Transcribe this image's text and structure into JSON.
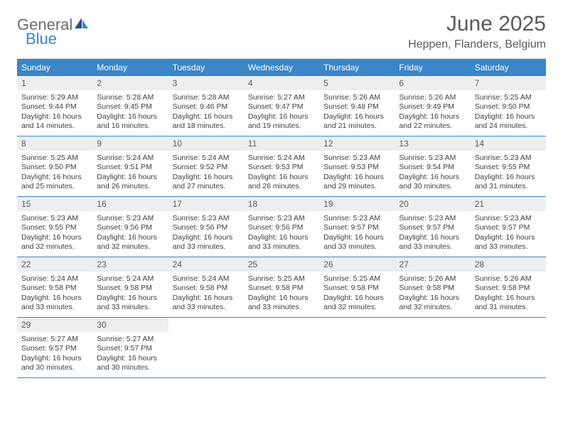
{
  "logo": {
    "text1": "General",
    "text2": "Blue"
  },
  "title": "June 2025",
  "location": "Heppen, Flanders, Belgium",
  "colors": {
    "header_bg": "#3a86c8",
    "header_text": "#ffffff",
    "daynum_bg": "#eceef0",
    "text": "#5a5a5a",
    "body_text": "#404040",
    "border": "#3a86c8"
  },
  "day_names": [
    "Sunday",
    "Monday",
    "Tuesday",
    "Wednesday",
    "Thursday",
    "Friday",
    "Saturday"
  ],
  "weeks": [
    [
      {
        "n": "1",
        "sr": "5:29 AM",
        "ss": "9:44 PM",
        "dh": "16",
        "dm": "14"
      },
      {
        "n": "2",
        "sr": "5:28 AM",
        "ss": "9:45 PM",
        "dh": "16",
        "dm": "16"
      },
      {
        "n": "3",
        "sr": "5:28 AM",
        "ss": "9:46 PM",
        "dh": "16",
        "dm": "18"
      },
      {
        "n": "4",
        "sr": "5:27 AM",
        "ss": "9:47 PM",
        "dh": "16",
        "dm": "19"
      },
      {
        "n": "5",
        "sr": "5:26 AM",
        "ss": "9:48 PM",
        "dh": "16",
        "dm": "21"
      },
      {
        "n": "6",
        "sr": "5:26 AM",
        "ss": "9:49 PM",
        "dh": "16",
        "dm": "22"
      },
      {
        "n": "7",
        "sr": "5:25 AM",
        "ss": "9:50 PM",
        "dh": "16",
        "dm": "24"
      }
    ],
    [
      {
        "n": "8",
        "sr": "5:25 AM",
        "ss": "9:50 PM",
        "dh": "16",
        "dm": "25"
      },
      {
        "n": "9",
        "sr": "5:24 AM",
        "ss": "9:51 PM",
        "dh": "16",
        "dm": "26"
      },
      {
        "n": "10",
        "sr": "5:24 AM",
        "ss": "9:52 PM",
        "dh": "16",
        "dm": "27"
      },
      {
        "n": "11",
        "sr": "5:24 AM",
        "ss": "9:53 PM",
        "dh": "16",
        "dm": "28"
      },
      {
        "n": "12",
        "sr": "5:23 AM",
        "ss": "9:53 PM",
        "dh": "16",
        "dm": "29"
      },
      {
        "n": "13",
        "sr": "5:23 AM",
        "ss": "9:54 PM",
        "dh": "16",
        "dm": "30"
      },
      {
        "n": "14",
        "sr": "5:23 AM",
        "ss": "9:55 PM",
        "dh": "16",
        "dm": "31"
      }
    ],
    [
      {
        "n": "15",
        "sr": "5:23 AM",
        "ss": "9:55 PM",
        "dh": "16",
        "dm": "32"
      },
      {
        "n": "16",
        "sr": "5:23 AM",
        "ss": "9:56 PM",
        "dh": "16",
        "dm": "32"
      },
      {
        "n": "17",
        "sr": "5:23 AM",
        "ss": "9:56 PM",
        "dh": "16",
        "dm": "33"
      },
      {
        "n": "18",
        "sr": "5:23 AM",
        "ss": "9:56 PM",
        "dh": "16",
        "dm": "33"
      },
      {
        "n": "19",
        "sr": "5:23 AM",
        "ss": "9:57 PM",
        "dh": "16",
        "dm": "33"
      },
      {
        "n": "20",
        "sr": "5:23 AM",
        "ss": "9:57 PM",
        "dh": "16",
        "dm": "33"
      },
      {
        "n": "21",
        "sr": "5:23 AM",
        "ss": "9:57 PM",
        "dh": "16",
        "dm": "33"
      }
    ],
    [
      {
        "n": "22",
        "sr": "5:24 AM",
        "ss": "9:58 PM",
        "dh": "16",
        "dm": "33"
      },
      {
        "n": "23",
        "sr": "5:24 AM",
        "ss": "9:58 PM",
        "dh": "16",
        "dm": "33"
      },
      {
        "n": "24",
        "sr": "5:24 AM",
        "ss": "9:58 PM",
        "dh": "16",
        "dm": "33"
      },
      {
        "n": "25",
        "sr": "5:25 AM",
        "ss": "9:58 PM",
        "dh": "16",
        "dm": "33"
      },
      {
        "n": "26",
        "sr": "5:25 AM",
        "ss": "9:58 PM",
        "dh": "16",
        "dm": "32"
      },
      {
        "n": "27",
        "sr": "5:26 AM",
        "ss": "9:58 PM",
        "dh": "16",
        "dm": "32"
      },
      {
        "n": "28",
        "sr": "5:26 AM",
        "ss": "9:58 PM",
        "dh": "16",
        "dm": "31"
      }
    ],
    [
      {
        "n": "29",
        "sr": "5:27 AM",
        "ss": "9:57 PM",
        "dh": "16",
        "dm": "30"
      },
      {
        "n": "30",
        "sr": "5:27 AM",
        "ss": "9:57 PM",
        "dh": "16",
        "dm": "30"
      },
      null,
      null,
      null,
      null,
      null
    ]
  ],
  "labels": {
    "sunrise": "Sunrise:",
    "sunset": "Sunset:",
    "daylight_prefix": "Daylight:",
    "hours_and": "hours and",
    "minutes": "minutes."
  }
}
